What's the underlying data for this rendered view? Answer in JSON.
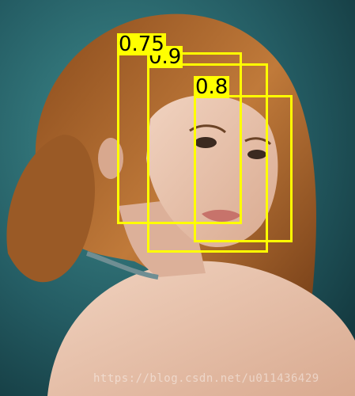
{
  "detections": [
    {
      "score": "0.75"
    },
    {
      "score": "0.9"
    },
    {
      "score": "0.8"
    }
  ],
  "watermark": "https://blog.csdn.net/u011436429",
  "colors": {
    "box": "#ffff00",
    "label_text": "#000000"
  }
}
